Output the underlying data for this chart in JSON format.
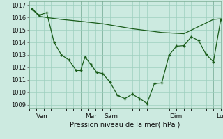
{
  "background_color": "#cceae0",
  "grid_color": "#9ecfbe",
  "line_color": "#1a5c1a",
  "marker_color": "#1a5c1a",
  "xlim": [
    0,
    13
  ],
  "ylim": [
    1008.7,
    1017.3
  ],
  "y_ticks": [
    1009,
    1010,
    1011,
    1012,
    1013,
    1014,
    1015,
    1016,
    1017
  ],
  "x_day_lines": [
    0,
    3.5,
    5.0,
    9.0,
    12.5
  ],
  "x_tick_labels_pos": [
    0.5,
    3.8,
    5.1,
    9.5,
    12.7
  ],
  "x_tick_labels": [
    "Ven",
    "Mar",
    "Sam",
    "Dim",
    "Lun"
  ],
  "xlabel": "Pression niveau de la mer( hPa )",
  "line1_x": [
    0.2,
    0.7,
    1.2,
    2.2,
    3.5,
    5.0,
    7.0,
    9.0,
    10.5,
    12.5,
    13.0
  ],
  "line1_y": [
    1016.7,
    1016.1,
    1016.0,
    1015.85,
    1015.7,
    1015.5,
    1015.1,
    1014.8,
    1014.7,
    1015.85,
    1015.9
  ],
  "line2_x": [
    0.2,
    0.7,
    1.2,
    1.7,
    2.2,
    2.7,
    3.2,
    3.5,
    3.8,
    4.2,
    4.6,
    5.0,
    5.5,
    6.0,
    6.5,
    7.0,
    7.5,
    8.0,
    8.5,
    9.0,
    9.5,
    10.0,
    10.5,
    11.0,
    11.5,
    12.0,
    12.5,
    13.0
  ],
  "line2_y": [
    1016.7,
    1016.2,
    1016.4,
    1014.0,
    1013.0,
    1012.6,
    1011.75,
    1011.75,
    1012.85,
    1012.2,
    1011.6,
    1011.5,
    1010.8,
    1009.75,
    1009.5,
    1009.85,
    1009.5,
    1009.1,
    1010.7,
    1010.75,
    1013.0,
    1013.7,
    1013.75,
    1014.45,
    1014.15,
    1013.05,
    1012.45,
    1015.85
  ]
}
